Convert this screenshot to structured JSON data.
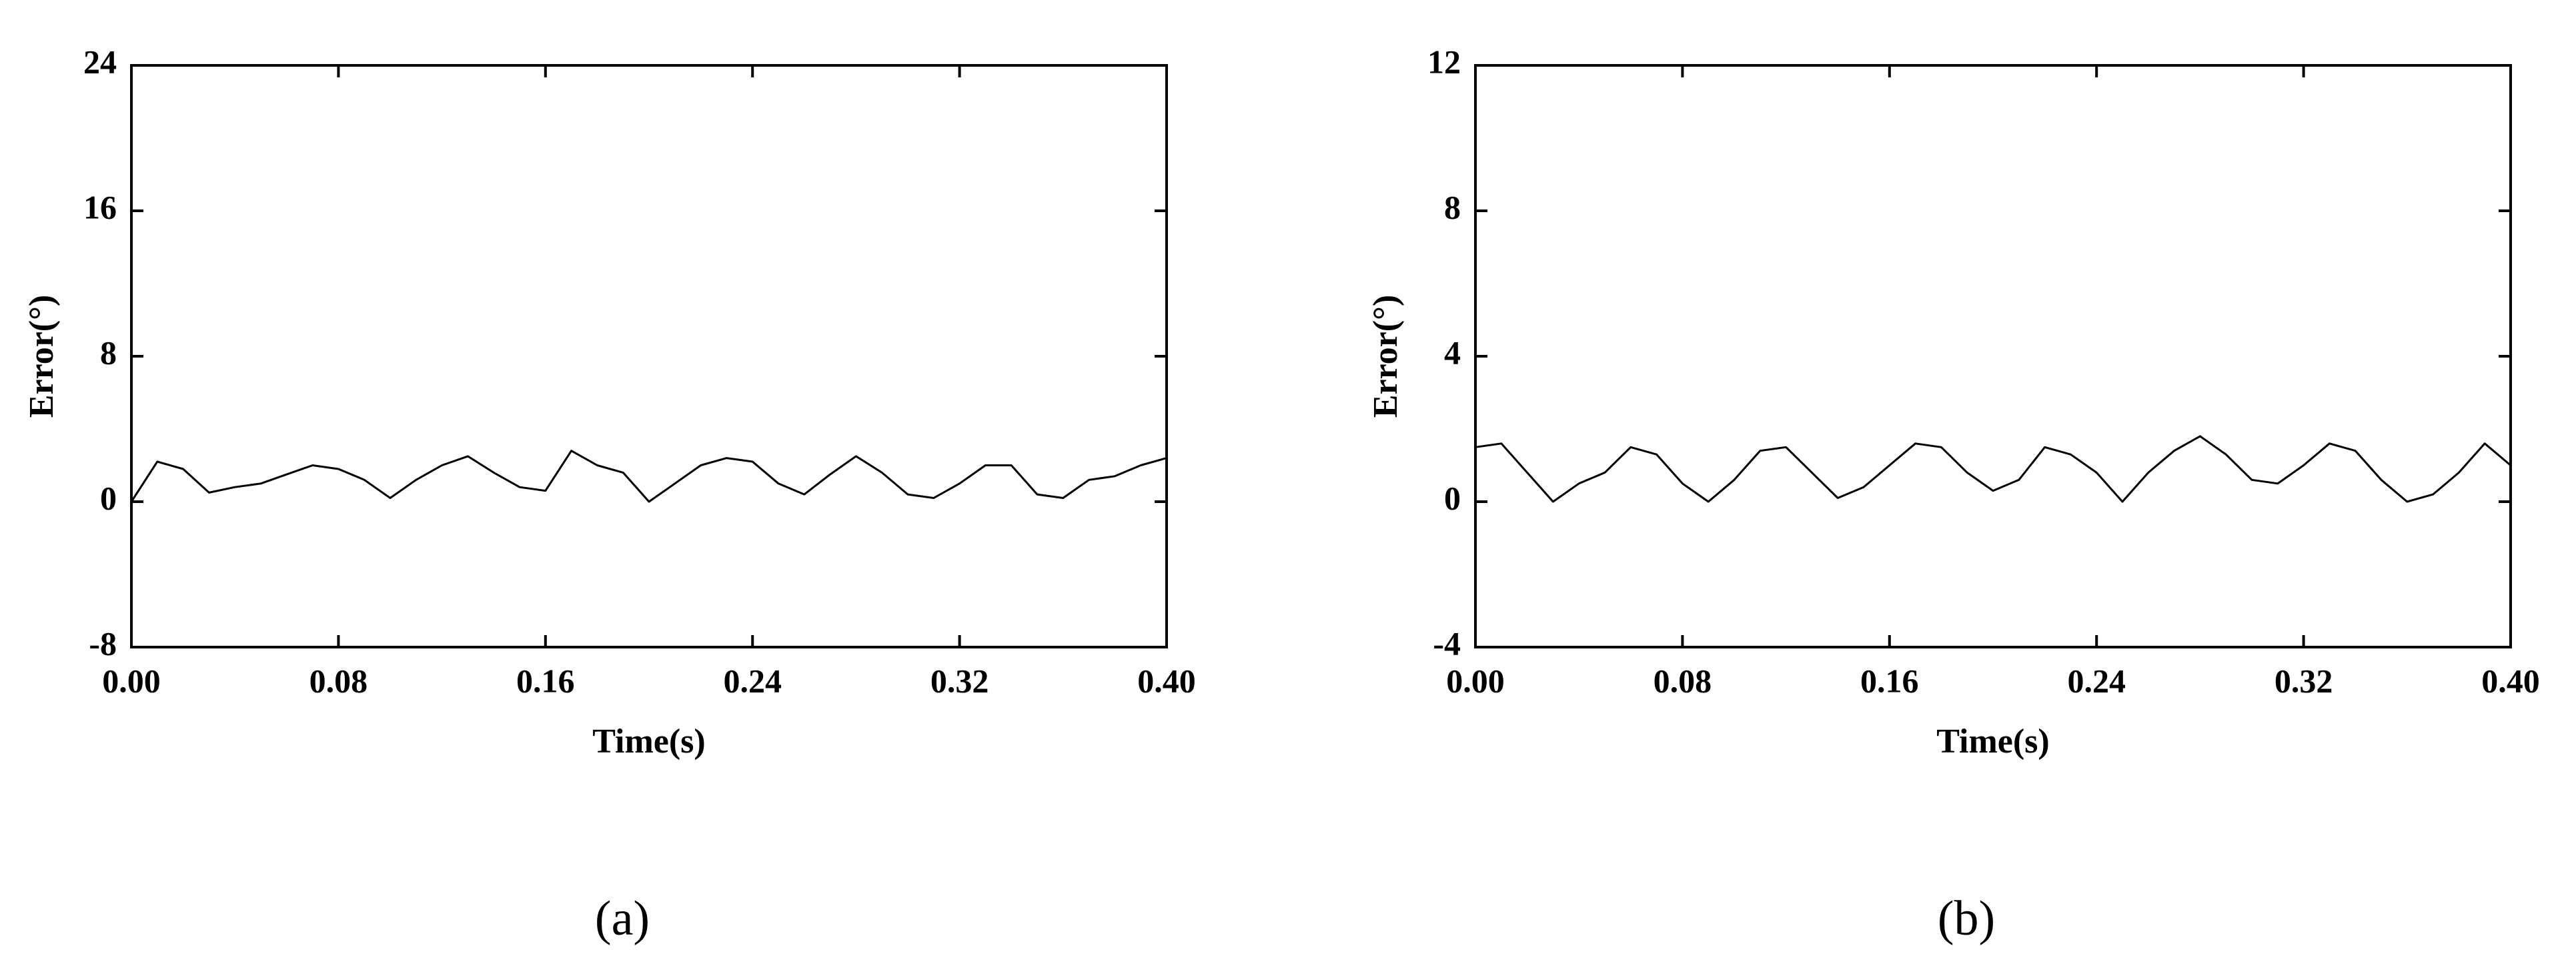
{
  "chart_data": [
    {
      "type": "line",
      "caption": "(a)",
      "xlabel": "Time(s)",
      "ylabel": "Error(°)",
      "color": "#000000",
      "x": [
        0,
        0.01,
        0.02,
        0.03,
        0.04,
        0.05,
        0.06,
        0.07,
        0.08,
        0.09,
        0.1,
        0.11,
        0.12,
        0.13,
        0.14,
        0.15,
        0.16,
        0.17,
        0.18,
        0.19,
        0.2,
        0.21,
        0.22,
        0.23,
        0.24,
        0.25,
        0.26,
        0.27,
        0.28,
        0.29,
        0.3,
        0.31,
        0.32,
        0.33,
        0.34,
        0.35,
        0.36,
        0.37,
        0.38,
        0.39,
        0.4
      ],
      "values": [
        0,
        2.2,
        1.8,
        0.5,
        0.8,
        1,
        1.5,
        2,
        1.8,
        1.2,
        0.2,
        1.2,
        2,
        2.5,
        1.6,
        0.8,
        0.6,
        2.8,
        2,
        1.6,
        0,
        1,
        2,
        2.4,
        2.2,
        1,
        0.4,
        1.5,
        2.5,
        1.6,
        0.4,
        0.2,
        1,
        2,
        2,
        0.4,
        0.2,
        1.2,
        1.4,
        2,
        2.4
      ],
      "xlim": [
        0,
        0.4
      ],
      "ylim": [
        -8,
        24
      ],
      "xticks": [
        {
          "value": 0,
          "label": "0.00"
        },
        0.08,
        0.16,
        0.24,
        0.32,
        {
          "value": 0.4,
          "label": "0.40"
        }
      ],
      "yticks": [
        -8,
        0,
        8,
        16,
        24
      ]
    },
    {
      "type": "line",
      "caption": "(b)",
      "xlabel": "Time(s)",
      "ylabel": "Error(°)",
      "color": "#000000",
      "x": [
        0,
        0.01,
        0.02,
        0.03,
        0.04,
        0.05,
        0.06,
        0.07,
        0.08,
        0.09,
        0.1,
        0.11,
        0.12,
        0.13,
        0.14,
        0.15,
        0.16,
        0.17,
        0.18,
        0.19,
        0.2,
        0.21,
        0.22,
        0.23,
        0.24,
        0.25,
        0.26,
        0.27,
        0.28,
        0.29,
        0.3,
        0.31,
        0.32,
        0.33,
        0.34,
        0.35,
        0.36,
        0.37,
        0.38,
        0.39,
        0.4
      ],
      "values": [
        1.5,
        1.6,
        0.8,
        0,
        0.5,
        0.8,
        1.5,
        1.3,
        0.5,
        0,
        0.6,
        1.4,
        1.5,
        0.8,
        0.1,
        0.4,
        1,
        1.6,
        1.5,
        0.8,
        0.3,
        0.6,
        1.5,
        1.3,
        0.8,
        0,
        0.8,
        1.4,
        1.8,
        1.3,
        0.6,
        0.5,
        1,
        1.6,
        1.4,
        0.6,
        0,
        0.2,
        0.8,
        1.6,
        1
      ],
      "xlim": [
        0,
        0.4
      ],
      "ylim": [
        -4,
        12
      ],
      "xticks": [
        {
          "value": 0,
          "label": "0.00"
        },
        0.08,
        0.16,
        0.24,
        0.32,
        {
          "value": 0.4,
          "label": "0.40"
        }
      ],
      "yticks": [
        -4,
        0,
        4,
        8,
        12
      ]
    }
  ]
}
